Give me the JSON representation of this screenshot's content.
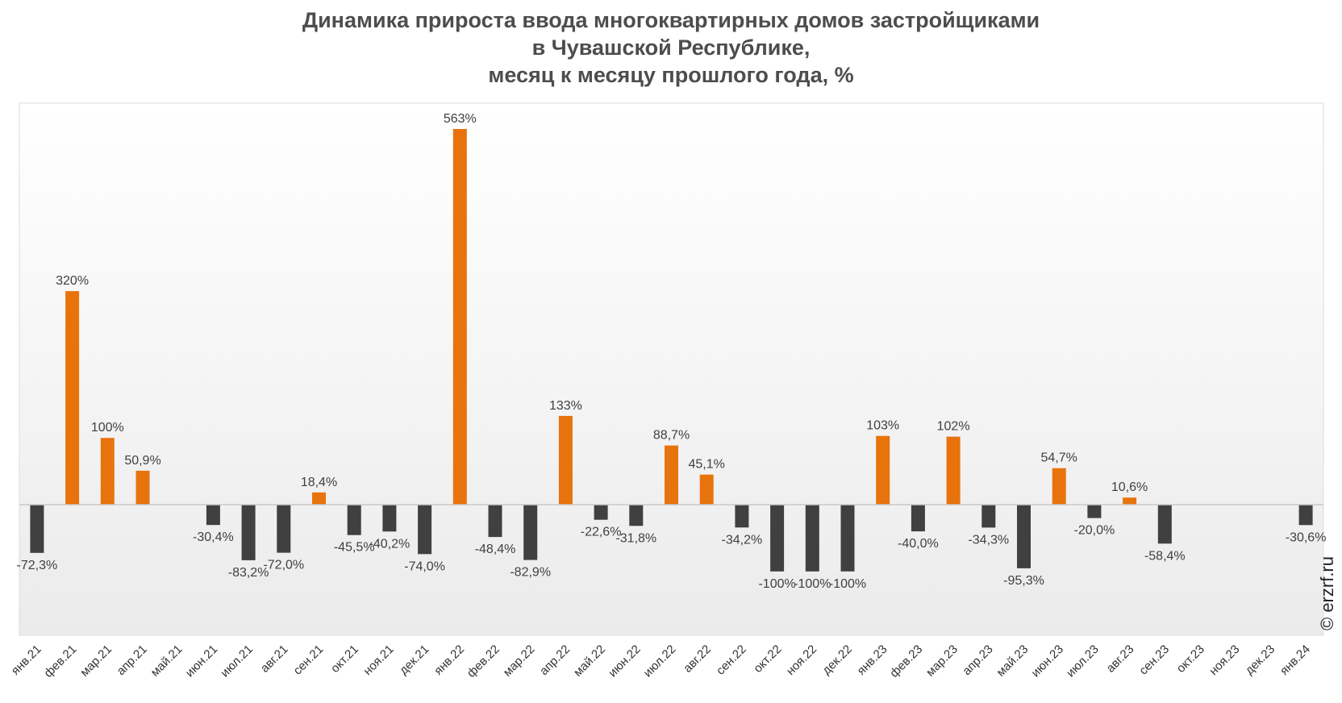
{
  "chart_data": {
    "type": "bar",
    "title": [
      "Динамика прироста ввода многоквартирных домов застройщиками",
      "в Чувашской Республике,",
      "месяц к месяцу прошлого года, %"
    ],
    "xlabel": "",
    "ylabel": "",
    "ylim": [
      -135,
      610
    ],
    "grid": false,
    "legend": "none",
    "categories": [
      "янв.21",
      "фев.21",
      "мар.21",
      "апр.21",
      "май.21",
      "июн.21",
      "июл.21",
      "авг.21",
      "сен.21",
      "окт.21",
      "ноя.21",
      "дек.21",
      "янв.22",
      "фев.22",
      "мар.22",
      "апр.22",
      "май.22",
      "июн.22",
      "июл.22",
      "авг.22",
      "сен.22",
      "окт.22",
      "ноя.22",
      "дек.22",
      "янв.23",
      "фев.23",
      "мар.23",
      "апр.23",
      "май.23",
      "июн.23",
      "июл.23",
      "авг.23",
      "сен.23",
      "окт.23",
      "ноя.23",
      "дек.23",
      "янв.24"
    ],
    "values": [
      -72.3,
      320,
      100,
      50.9,
      null,
      -30.4,
      -83.2,
      -72.0,
      18.4,
      -45.5,
      -40.2,
      -74.0,
      563,
      -48.4,
      -82.9,
      133,
      -22.6,
      -31.8,
      88.7,
      45.1,
      -34.2,
      -100,
      -100,
      -100,
      103,
      -40.0,
      102,
      -34.3,
      -95.3,
      54.7,
      -20.0,
      10.6,
      -58.4,
      null,
      null,
      null,
      -30.6
    ],
    "labels": [
      "-72,3%",
      "320%",
      "100%",
      "50,9%",
      "",
      "-30,4%",
      "-83,2%",
      "-72,0%",
      "18,4%",
      "-45,5%",
      "-40,2%",
      "-74,0%",
      "563%",
      "-48,4%",
      "-82,9%",
      "133%",
      "-22,6%",
      "-31,8%",
      "88,7%",
      "45,1%",
      "-34,2%",
      "-100%",
      "-100%",
      "-100%",
      "103%",
      "-40,0%",
      "102%",
      "-34,3%",
      "-95,3%",
      "54,7%",
      "-20,0%",
      "10,6%",
      "-58,4%",
      "",
      "",
      "",
      "-30,6%"
    ],
    "colors": {
      "positive": "#e8730c",
      "negative": "#404040",
      "axis": "#c8c8c8",
      "label": "#404040"
    }
  },
  "credit": "© erzrf.ru"
}
